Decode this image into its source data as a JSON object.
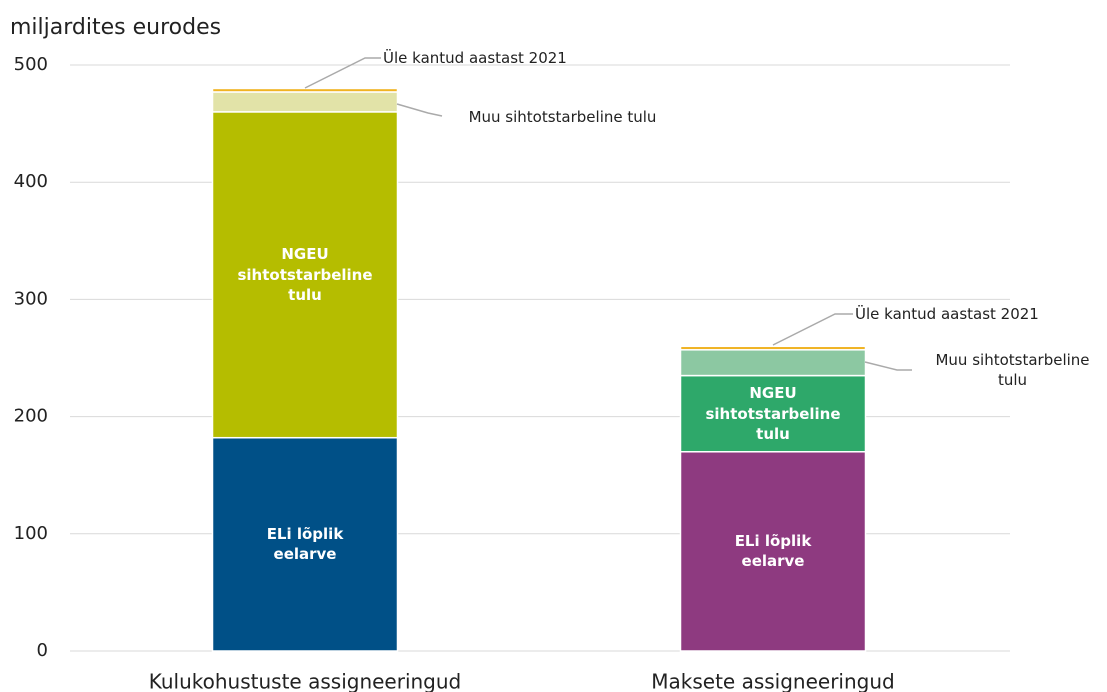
{
  "chart_data": {
    "type": "stacked-bar",
    "ylabel": "miljardites eurodes",
    "categories": [
      "Kulukohustuste assigneeringud",
      "Maksete assigneeringud"
    ],
    "series": [
      {
        "name": "ELi lõplik eelarve",
        "colors": [
          "#005087",
          "#8e3a80"
        ],
        "values": [
          182,
          170
        ]
      },
      {
        "name": "NGEU sihtotstarbeline tulu",
        "colors": [
          "#b5bd00",
          "#2ea86a"
        ],
        "values": [
          278,
          65
        ]
      },
      {
        "name": "Muu sihtotstarbeline tulu",
        "colors": [
          "#e2e3a8",
          "#8cc8a2"
        ],
        "values": [
          17,
          22
        ]
      },
      {
        "name": "Üle kantud aastast 2021",
        "colors": [
          "#f0b323",
          "#f0b323"
        ],
        "values": [
          3,
          3
        ]
      }
    ],
    "ylim": [
      0,
      500
    ],
    "yticks": [
      0,
      100,
      200,
      300,
      400,
      500
    ],
    "grid": true
  }
}
